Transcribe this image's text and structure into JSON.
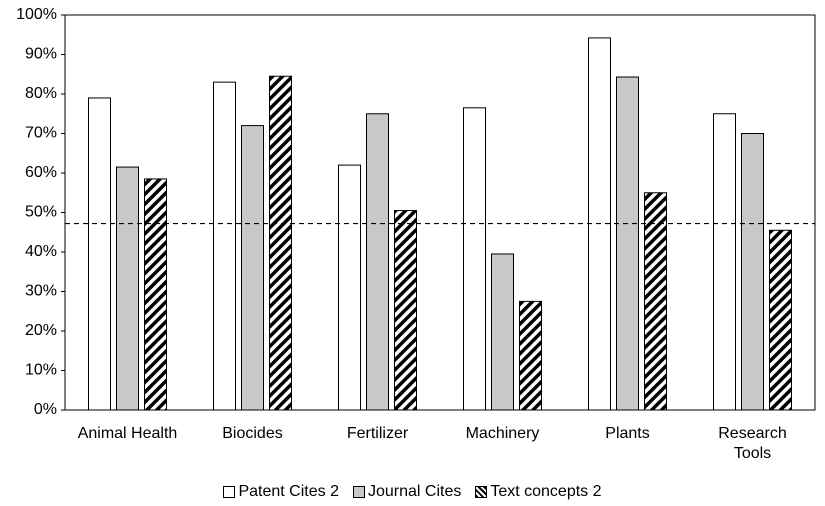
{
  "chart_data": {
    "type": "bar",
    "categories": [
      "Animal Health",
      "Biocides",
      "Fertilizer",
      "Machinery",
      "Plants",
      "Research Tools"
    ],
    "series": [
      {
        "name": "Patent Cites 2",
        "color": "#ffffff",
        "values": [
          79,
          83,
          62,
          76.5,
          94.2,
          75
        ]
      },
      {
        "name": "Journal Cites",
        "color": "#c8c8c8",
        "values": [
          61.5,
          72,
          75,
          39.5,
          84.3,
          70
        ]
      },
      {
        "name": "Text concepts 2",
        "color": "#ffffff",
        "pattern": "diagonal-hatch",
        "values": [
          58.5,
          84.5,
          50.5,
          27.5,
          55,
          45.5
        ]
      }
    ],
    "ylim": [
      0,
      100
    ],
    "yticks": [
      {
        "value": 0,
        "label": "0%"
      },
      {
        "value": 10,
        "label": "10%"
      },
      {
        "value": 20,
        "label": "20%"
      },
      {
        "value": 30,
        "label": "30%"
      },
      {
        "value": 40,
        "label": "40%"
      },
      {
        "value": 50,
        "label": "50%"
      },
      {
        "value": 60,
        "label": "60%"
      },
      {
        "value": 70,
        "label": "70%"
      },
      {
        "value": 80,
        "label": "80%"
      },
      {
        "value": 90,
        "label": "90%"
      },
      {
        "value": 100,
        "label": "100%"
      }
    ],
    "reference_line": 47.2,
    "grid": false,
    "legend": "bottom"
  }
}
